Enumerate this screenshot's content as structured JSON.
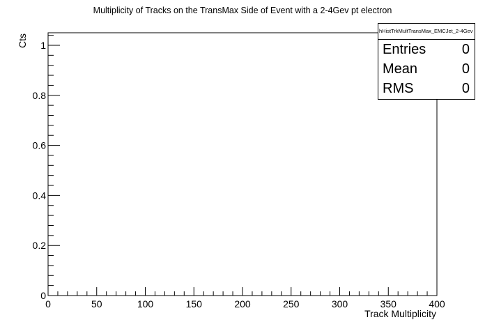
{
  "chart_data": {
    "type": "bar",
    "title": "Multiplicity of Tracks on the TransMax Side of Event with a 2-4Gev pt electron",
    "xlabel": "Track Multiplicity",
    "ylabel": "Cts",
    "xlim": [
      0,
      400
    ],
    "ylim": [
      0,
      1.05
    ],
    "x_ticks": [
      "0",
      "50",
      "100",
      "150",
      "200",
      "250",
      "300",
      "350",
      "400"
    ],
    "y_ticks": [
      "0",
      "0.2",
      "0.4",
      "0.6",
      "0.8",
      "1"
    ],
    "grid": false,
    "series": [
      {
        "values": []
      }
    ]
  },
  "stats_box": {
    "name": "hHistTrkMultTransMax_EMCJet_2-4Gev",
    "entries_label": "Entries",
    "entries_value": "0",
    "mean_label": "Mean",
    "mean_value": "0",
    "rms_label": "RMS",
    "rms_value": "0"
  }
}
